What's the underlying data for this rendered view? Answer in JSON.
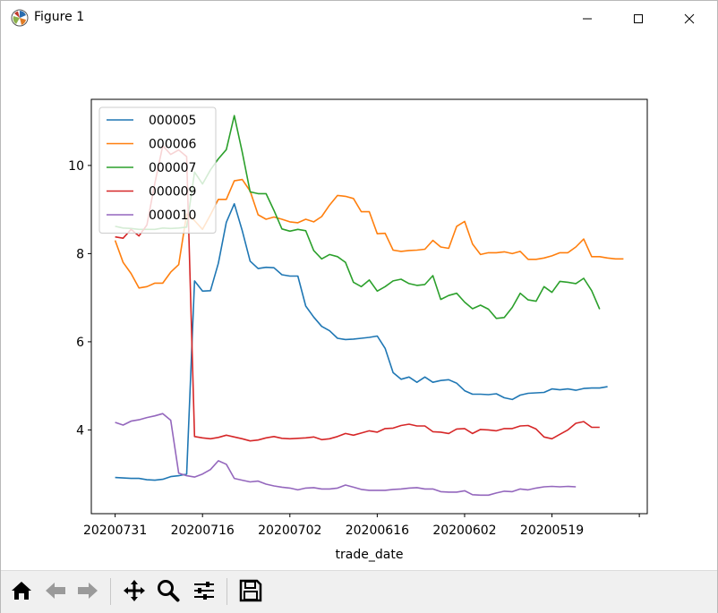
{
  "window": {
    "title": "Figure 1",
    "icons": {
      "app": "matplotlib-icon",
      "minimize": "minimize-icon",
      "maximize": "maximize-icon",
      "close": "close-icon"
    }
  },
  "toolbar": {
    "buttons": [
      {
        "name": "home-button",
        "icon": "home-icon"
      },
      {
        "name": "back-button",
        "icon": "arrow-left-icon"
      },
      {
        "name": "forward-button",
        "icon": "arrow-right-icon"
      },
      {
        "name": "pan-button",
        "icon": "move-icon"
      },
      {
        "name": "zoom-button",
        "icon": "zoom-icon"
      },
      {
        "name": "configure-subplots-button",
        "icon": "sliders-icon"
      },
      {
        "name": "save-button",
        "icon": "save-icon"
      }
    ]
  },
  "chart_data": {
    "type": "line",
    "title": "",
    "xlabel": "trade_date",
    "ylabel": "",
    "ylim": [
      2.1,
      11.5
    ],
    "xlim": [
      -3,
      67
    ],
    "yticks": [
      4,
      6,
      8,
      10
    ],
    "xticks": [
      {
        "i": 0,
        "label": "20200731"
      },
      {
        "i": 11,
        "label": "20200716"
      },
      {
        "i": 22,
        "label": "20200702"
      },
      {
        "i": 33,
        "label": "20200616"
      },
      {
        "i": 44,
        "label": "20200602"
      },
      {
        "i": 55,
        "label": "20200519"
      },
      {
        "i": 66,
        "label": ""
      }
    ],
    "grid": false,
    "legend_position": "upper left",
    "series": [
      {
        "name": "000005",
        "color": "#1f77b4",
        "values": [
          2.92,
          2.91,
          2.9,
          2.9,
          2.87,
          2.86,
          2.88,
          2.94,
          2.96,
          3.0,
          7.38,
          7.15,
          7.16,
          7.78,
          8.71,
          9.13,
          8.52,
          7.83,
          7.66,
          7.69,
          7.68,
          7.52,
          7.49,
          7.49,
          6.81,
          6.56,
          6.35,
          6.25,
          6.08,
          6.05,
          6.06,
          6.08,
          6.1,
          6.13,
          5.85,
          5.3,
          5.15,
          5.2,
          5.08,
          5.2,
          5.08,
          5.12,
          5.14,
          5.06,
          4.89,
          4.81,
          4.81,
          4.8,
          4.82,
          4.73,
          4.69,
          4.79,
          4.83,
          4.84,
          4.85,
          4.93,
          4.91,
          4.93,
          4.9,
          4.94,
          4.95,
          4.95,
          4.98
        ]
      },
      {
        "name": "000006",
        "color": "#ff7f0e",
        "values": [
          8.3,
          7.8,
          7.55,
          7.22,
          7.25,
          7.33,
          7.33,
          7.58,
          7.75,
          8.9,
          8.75,
          8.55,
          8.88,
          9.23,
          9.23,
          9.65,
          9.68,
          9.42,
          8.88,
          8.78,
          8.83,
          8.78,
          8.72,
          8.7,
          8.78,
          8.72,
          8.84,
          9.1,
          9.32,
          9.3,
          9.25,
          8.95,
          8.95,
          8.45,
          8.46,
          8.08,
          8.05,
          8.07,
          8.08,
          8.1,
          8.3,
          8.15,
          8.12,
          8.62,
          8.73,
          8.22,
          7.98,
          8.02,
          8.02,
          8.04,
          8.0,
          8.05,
          7.87,
          7.87,
          7.9,
          7.95,
          8.02,
          8.02,
          8.15,
          8.33,
          7.93,
          7.93,
          7.9,
          7.88,
          7.88
        ]
      },
      {
        "name": "000007",
        "color": "#2ca02c",
        "values": [
          8.62,
          8.58,
          8.57,
          8.55,
          8.55,
          8.55,
          8.58,
          8.57,
          8.58,
          8.6,
          9.85,
          9.58,
          9.9,
          10.15,
          10.36,
          11.13,
          10.3,
          9.4,
          9.36,
          9.36,
          8.98,
          8.56,
          8.51,
          8.55,
          8.52,
          8.07,
          7.88,
          7.98,
          7.93,
          7.8,
          7.35,
          7.25,
          7.4,
          7.15,
          7.25,
          7.38,
          7.42,
          7.32,
          7.28,
          7.3,
          7.5,
          6.96,
          7.05,
          7.1,
          6.9,
          6.75,
          6.83,
          6.74,
          6.53,
          6.55,
          6.78,
          7.1,
          6.95,
          6.92,
          7.25,
          7.12,
          7.37,
          7.35,
          7.32,
          7.44,
          7.16,
          6.74
        ]
      },
      {
        "name": "000009",
        "color": "#d62728",
        "values": [
          8.38,
          8.35,
          8.55,
          8.4,
          8.65,
          9.6,
          10.45,
          10.25,
          10.35,
          10.2,
          3.85,
          3.82,
          3.8,
          3.83,
          3.88,
          3.84,
          3.8,
          3.75,
          3.77,
          3.82,
          3.85,
          3.81,
          3.8,
          3.81,
          3.82,
          3.84,
          3.78,
          3.8,
          3.85,
          3.92,
          3.88,
          3.93,
          3.98,
          3.95,
          4.03,
          4.04,
          4.1,
          4.13,
          4.09,
          4.09,
          3.96,
          3.95,
          3.92,
          4.02,
          4.03,
          3.92,
          4.01,
          4.0,
          3.98,
          4.03,
          4.03,
          4.09,
          4.1,
          4.02,
          3.84,
          3.8,
          3.9,
          4.0,
          4.15,
          4.19,
          4.06,
          4.06
        ]
      },
      {
        "name": "000010",
        "color": "#9467bd",
        "values": [
          4.17,
          4.11,
          4.2,
          4.23,
          4.28,
          4.32,
          4.37,
          4.22,
          3.02,
          2.96,
          2.93,
          3.0,
          3.1,
          3.3,
          3.22,
          2.9,
          2.86,
          2.82,
          2.84,
          2.77,
          2.73,
          2.7,
          2.68,
          2.64,
          2.68,
          2.69,
          2.66,
          2.66,
          2.68,
          2.75,
          2.7,
          2.65,
          2.63,
          2.63,
          2.63,
          2.65,
          2.66,
          2.68,
          2.69,
          2.66,
          2.66,
          2.6,
          2.59,
          2.59,
          2.62,
          2.53,
          2.52,
          2.52,
          2.57,
          2.61,
          2.6,
          2.66,
          2.64,
          2.68,
          2.71,
          2.72,
          2.71,
          2.72,
          2.71
        ]
      }
    ]
  }
}
